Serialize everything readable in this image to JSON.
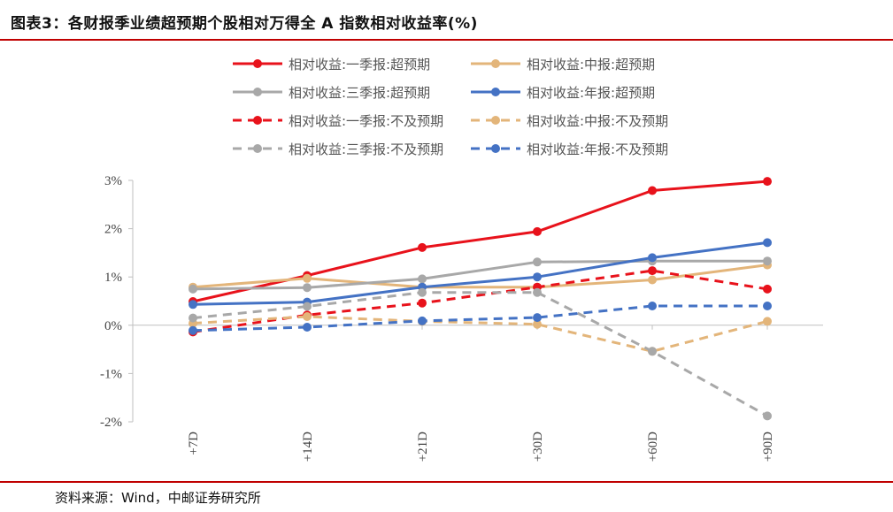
{
  "title": "图表3：各财报季业绩超预期个股相对万得全 A 指数相对收益率(%)",
  "source": "资料来源：Wind，中邮证券研究所",
  "chart_data": {
    "type": "line",
    "categories": [
      "+7D",
      "+14D",
      "+21D",
      "+30D",
      "+60D",
      "+90D"
    ],
    "ylim": [
      -2,
      3
    ],
    "yticks": [
      "3%",
      "2%",
      "1%",
      "0%",
      "-1%",
      "-2%"
    ],
    "ytick_values": [
      3,
      2,
      1,
      0,
      -1,
      -2
    ],
    "grid": false,
    "legend_position": "top",
    "series": [
      {
        "name": "相对收益:一季报:超预期",
        "color": "#e8121b",
        "dash": false,
        "values": [
          0.49,
          1.03,
          1.61,
          1.94,
          2.79,
          2.98
        ]
      },
      {
        "name": "相对收益:中报:超预期",
        "color": "#e3b57a",
        "dash": false,
        "values": [
          0.79,
          0.97,
          0.79,
          0.79,
          0.94,
          1.25
        ]
      },
      {
        "name": "相对收益:三季报:超预期",
        "color": "#a8a8a8",
        "dash": false,
        "values": [
          0.75,
          0.78,
          0.96,
          1.31,
          1.33,
          1.33
        ]
      },
      {
        "name": "相对收益:年报:超预期",
        "color": "#4472c4",
        "dash": false,
        "values": [
          0.43,
          0.48,
          0.79,
          1.0,
          1.4,
          1.71
        ]
      },
      {
        "name": "相对收益:一季报:不及预期",
        "color": "#e8121b",
        "dash": true,
        "values": [
          -0.14,
          0.21,
          0.46,
          0.79,
          1.13,
          0.75
        ]
      },
      {
        "name": "相对收益:中报:不及预期",
        "color": "#e3b57a",
        "dash": true,
        "values": [
          0.04,
          0.18,
          0.08,
          0.02,
          -0.54,
          0.08
        ]
      },
      {
        "name": "相对收益:三季报:不及预期",
        "color": "#a8a8a8",
        "dash": true,
        "values": [
          0.15,
          0.39,
          0.68,
          0.68,
          -0.54,
          -1.88
        ]
      },
      {
        "name": "相对收益:年报:不及预期",
        "color": "#4472c4",
        "dash": true,
        "values": [
          -0.11,
          -0.04,
          0.09,
          0.16,
          0.4,
          0.4
        ]
      }
    ]
  }
}
